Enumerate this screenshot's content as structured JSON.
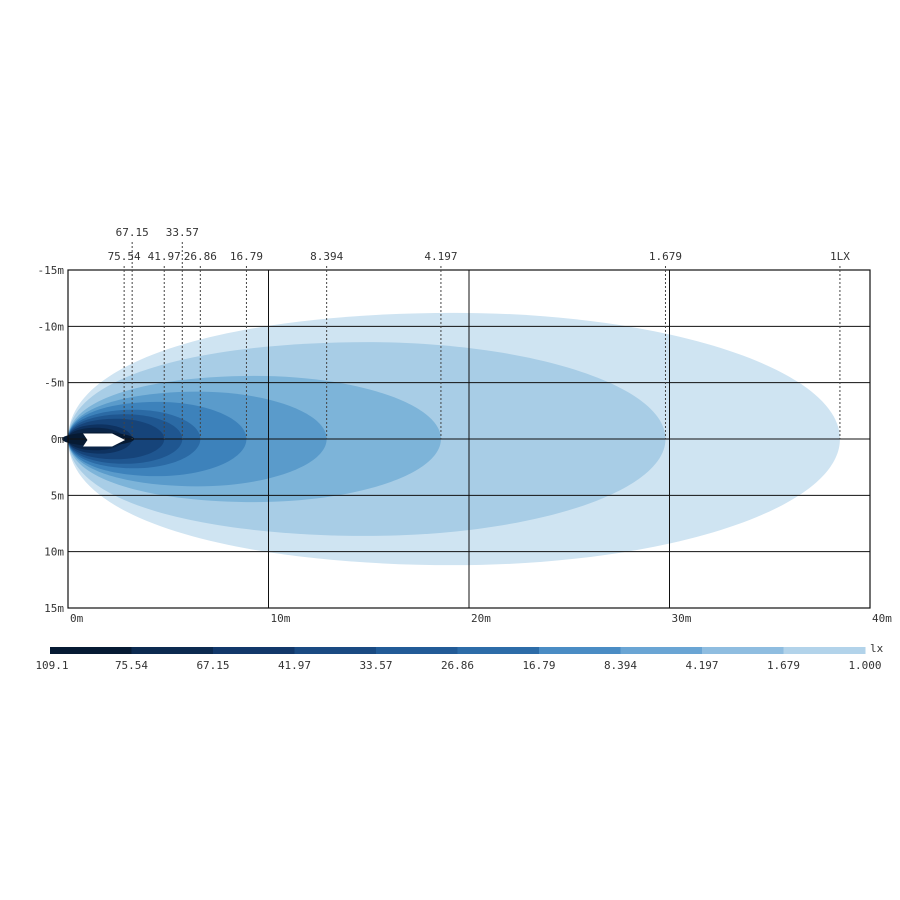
{
  "chart_data": {
    "type": "heatmap",
    "title": "",
    "x": {
      "unit": "m",
      "range": [
        0,
        40
      ],
      "ticks": [
        {
          "value": 0,
          "label": "0m"
        },
        {
          "value": 10,
          "label": "10m"
        },
        {
          "value": 20,
          "label": "20m"
        },
        {
          "value": 30,
          "label": "30m"
        },
        {
          "value": 40,
          "label": "40m"
        }
      ]
    },
    "y": {
      "unit": "m",
      "range": [
        -15,
        15
      ],
      "ticks": [
        {
          "value": -15,
          "label": "-15m"
        },
        {
          "value": -10,
          "label": "-10m"
        },
        {
          "value": -5,
          "label": "-5m"
        },
        {
          "value": 0,
          "label": "0m"
        },
        {
          "value": 5,
          "label": "5m"
        },
        {
          "value": 10,
          "label": "10m"
        },
        {
          "value": 15,
          "label": "15m"
        }
      ]
    },
    "grid": true,
    "isolux_unit": "lx",
    "contours": [
      {
        "lux": "1.000",
        "top_label": "1LX",
        "reach_m": 38.5,
        "half_width_m": 11.2,
        "color": "#cfe4f2"
      },
      {
        "lux": "1.679",
        "top_label": "1.679",
        "reach_m": 29.8,
        "half_width_m": 8.6,
        "color": "#a8cde6"
      },
      {
        "lux": "4.197",
        "top_label": "4.197",
        "reach_m": 18.6,
        "half_width_m": 5.6,
        "color": "#7db4d9"
      },
      {
        "lux": "8.394",
        "top_label": "8.394",
        "reach_m": 12.9,
        "half_width_m": 4.2,
        "color": "#5a9bcb"
      },
      {
        "lux": "16.79",
        "top_label": "16.79",
        "reach_m": 8.9,
        "half_width_m": 3.3,
        "color": "#3d82bb"
      },
      {
        "lux": "26.86",
        "top_label": "26.86",
        "reach_m": 6.6,
        "half_width_m": 2.6,
        "color": "#2b6aa5"
      },
      {
        "lux": "33.57",
        "top_label": "33.57",
        "reach_m": 5.7,
        "half_width_m": 2.2,
        "color": "#1f5690"
      },
      {
        "lux": "41.97",
        "top_label": "41.97",
        "reach_m": 4.8,
        "half_width_m": 1.8,
        "color": "#16447a"
      },
      {
        "lux": "67.15",
        "top_label": "67.15",
        "reach_m": 3.2,
        "half_width_m": 1.3,
        "color": "#0e3260"
      },
      {
        "lux": "75.54",
        "top_label": "75.54",
        "reach_m": 2.8,
        "half_width_m": 1.0,
        "color": "#0a2548"
      }
    ],
    "legend": {
      "unit": "lx",
      "labels": [
        "109.1",
        "75.54",
        "67.15",
        "41.97",
        "33.57",
        "26.86",
        "16.79",
        "8.394",
        "4.197",
        "1.679",
        "1.000"
      ],
      "colors": [
        "#061a33",
        "#0c2a50",
        "#12386a",
        "#1a4a82",
        "#225b97",
        "#2d6ca8",
        "#4a8cc4",
        "#6aa5d4",
        "#8fbde0",
        "#b2d3ea",
        "#d3e6f3"
      ]
    }
  }
}
